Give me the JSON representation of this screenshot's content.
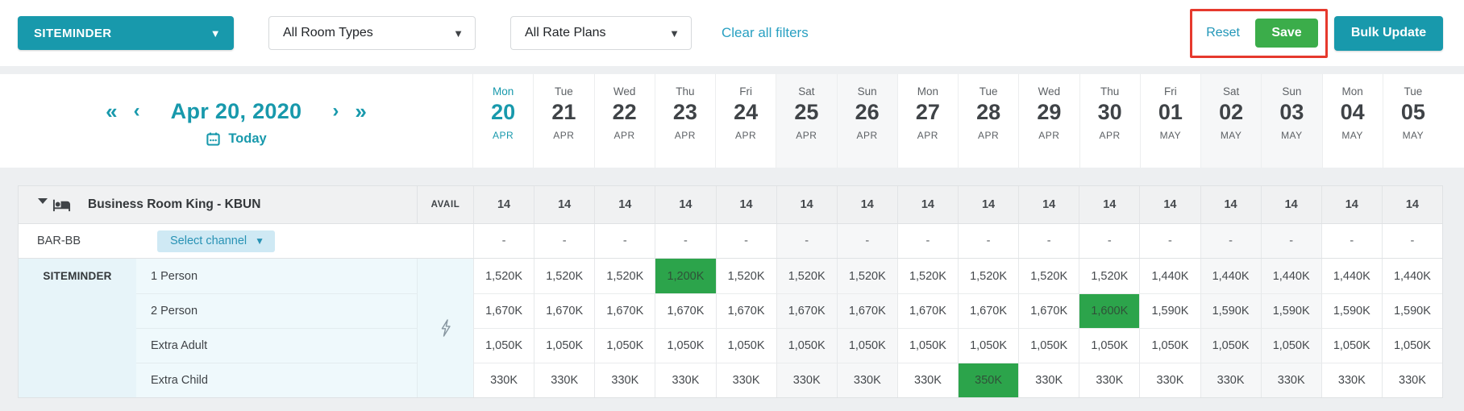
{
  "colors": {
    "accent_teal": "#1899ac",
    "save_green": "#3bad4a",
    "cell_highlight_green": "#2ca44b",
    "annotation_red": "#e6392d",
    "select_channel_bg": "#cfe9f4"
  },
  "toolbar": {
    "channel_selector": "SITEMINDER",
    "room_types": "All Room Types",
    "rate_plans": "All Rate Plans",
    "clear_filters": "Clear all filters",
    "reset": "Reset",
    "save": "Save",
    "bulk_update": "Bulk Update"
  },
  "date_nav": {
    "prev_week": "«",
    "prev_day": "‹",
    "date": "Apr 20, 2020",
    "next_day": "›",
    "next_week": "»",
    "today": "Today"
  },
  "calendar": {
    "days": [
      {
        "dow": "Mon",
        "num": "20",
        "mon": "APR",
        "today": true
      },
      {
        "dow": "Tue",
        "num": "21",
        "mon": "APR"
      },
      {
        "dow": "Wed",
        "num": "22",
        "mon": "APR"
      },
      {
        "dow": "Thu",
        "num": "23",
        "mon": "APR"
      },
      {
        "dow": "Fri",
        "num": "24",
        "mon": "APR"
      },
      {
        "dow": "Sat",
        "num": "25",
        "mon": "APR",
        "weekend": true
      },
      {
        "dow": "Sun",
        "num": "26",
        "mon": "APR",
        "weekend": true
      },
      {
        "dow": "Mon",
        "num": "27",
        "mon": "APR"
      },
      {
        "dow": "Tue",
        "num": "28",
        "mon": "APR"
      },
      {
        "dow": "Wed",
        "num": "29",
        "mon": "APR"
      },
      {
        "dow": "Thu",
        "num": "30",
        "mon": "APR"
      },
      {
        "dow": "Fri",
        "num": "01",
        "mon": "MAY"
      },
      {
        "dow": "Sat",
        "num": "02",
        "mon": "MAY",
        "weekend": true
      },
      {
        "dow": "Sun",
        "num": "03",
        "mon": "MAY",
        "weekend": true
      },
      {
        "dow": "Mon",
        "num": "04",
        "mon": "MAY"
      },
      {
        "dow": "Tue",
        "num": "05",
        "mon": "MAY"
      }
    ]
  },
  "room": {
    "name": "Business Room King - KBUN",
    "avail_label": "AVAIL",
    "availability": [
      "14",
      "14",
      "14",
      "14",
      "14",
      "14",
      "14",
      "14",
      "14",
      "14",
      "14",
      "14",
      "14",
      "14",
      "14",
      "14"
    ]
  },
  "rate_plan": {
    "name": "BAR-BB",
    "select_channel": "Select channel",
    "values": [
      "-",
      "-",
      "-",
      "-",
      "-",
      "-",
      "-",
      "-",
      "-",
      "-",
      "-",
      "-",
      "-",
      "-",
      "-",
      "-"
    ]
  },
  "channel": {
    "name": "SITEMINDER",
    "rows": [
      {
        "label": "1 Person",
        "highlight": 3,
        "values": [
          "1,520K",
          "1,520K",
          "1,520K",
          "1,200K",
          "1,520K",
          "1,520K",
          "1,520K",
          "1,520K",
          "1,520K",
          "1,520K",
          "1,520K",
          "1,440K",
          "1,440K",
          "1,440K",
          "1,440K",
          "1,440K"
        ]
      },
      {
        "label": "2 Person",
        "highlight": 10,
        "values": [
          "1,670K",
          "1,670K",
          "1,670K",
          "1,670K",
          "1,670K",
          "1,670K",
          "1,670K",
          "1,670K",
          "1,670K",
          "1,670K",
          "1,600K",
          "1,590K",
          "1,590K",
          "1,590K",
          "1,590K",
          "1,590K"
        ]
      },
      {
        "label": "Extra Adult",
        "highlight": -1,
        "values": [
          "1,050K",
          "1,050K",
          "1,050K",
          "1,050K",
          "1,050K",
          "1,050K",
          "1,050K",
          "1,050K",
          "1,050K",
          "1,050K",
          "1,050K",
          "1,050K",
          "1,050K",
          "1,050K",
          "1,050K",
          "1,050K"
        ]
      },
      {
        "label": "Extra Child",
        "highlight": 8,
        "values": [
          "330K",
          "330K",
          "330K",
          "330K",
          "330K",
          "330K",
          "330K",
          "330K",
          "350K",
          "330K",
          "330K",
          "330K",
          "330K",
          "330K",
          "330K",
          "330K"
        ]
      }
    ]
  }
}
